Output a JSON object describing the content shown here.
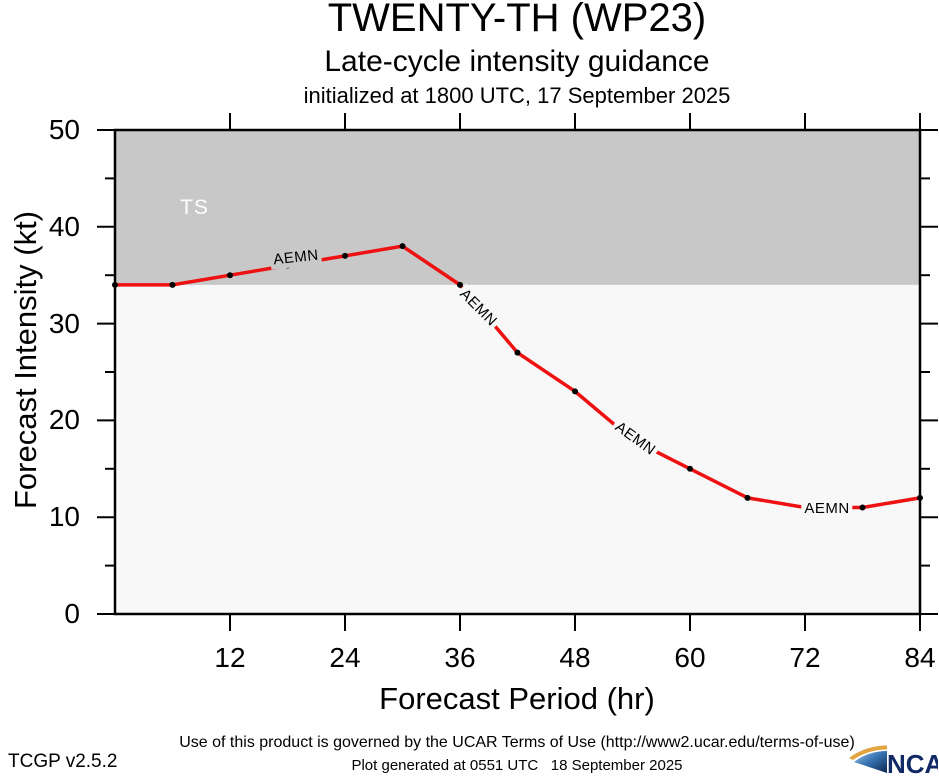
{
  "header": {
    "title": "TWENTY-TH (WP23)",
    "subtitle": "Late-cycle intensity guidance",
    "init_line": "initialized at 1800 UTC, 17 September 2025"
  },
  "chart_data": {
    "type": "line",
    "title": "TWENTY-TH (WP23) Late-cycle intensity guidance, initialized at 1800 UTC, 17 September 2025",
    "xlabel": "Forecast Period (hr)",
    "ylabel": "Forecast Intensity (kt)",
    "xlim": [
      0,
      84
    ],
    "ylim": [
      0,
      50
    ],
    "x_ticks": [
      12,
      24,
      36,
      48,
      60,
      72,
      84
    ],
    "y_ticks": [
      0,
      10,
      20,
      30,
      40,
      50
    ],
    "y_minor_ticks": [
      5,
      15,
      25,
      35,
      45
    ],
    "grid": false,
    "plot_bg": "#f8f8f8",
    "axis_color": "#000000",
    "series": [
      {
        "name": "AEMN",
        "color": "#ee1111",
        "marker_color": "#000000",
        "x": [
          0,
          6,
          12,
          18,
          24,
          30,
          36,
          42,
          48,
          54,
          60,
          66,
          72,
          78,
          84
        ],
        "values": [
          34,
          34,
          35,
          36,
          37,
          38,
          34,
          27,
          23,
          18,
          15,
          12,
          11,
          11,
          12
        ]
      }
    ],
    "zones": [
      {
        "label": "TS",
        "from": 34,
        "to": 50,
        "color": "#c8c8c8",
        "label_color": "#ffffff",
        "label_hour": 8.3,
        "label_kt": 41.9
      }
    ],
    "line_labels": [
      {
        "text": "AEMN",
        "hour": 18.9,
        "kt": 36.8,
        "angle": -6,
        "bg": "#c8c8c8"
      },
      {
        "text": "AEMN",
        "hour": 37.9,
        "kt": 31.6,
        "angle": 45,
        "bg": "#f8f8f8"
      },
      {
        "text": "AEMN",
        "hour": 54.3,
        "kt": 18.1,
        "angle": 36,
        "bg": "#f8f8f8"
      },
      {
        "text": "AEMN",
        "hour": 74.3,
        "kt": 10.8,
        "angle": 0,
        "bg": "#f8f8f8"
      }
    ]
  },
  "footer": {
    "terms": "Use of this product is governed by the UCAR Terms of Use (http://www2.ucar.edu/terms-of-use)",
    "version": "TCGP v2.5.2",
    "generated": "Plot generated at 0551 UTC   18 September 2025",
    "logo_text": "NCAR",
    "logo_text_color": "#112a66"
  }
}
